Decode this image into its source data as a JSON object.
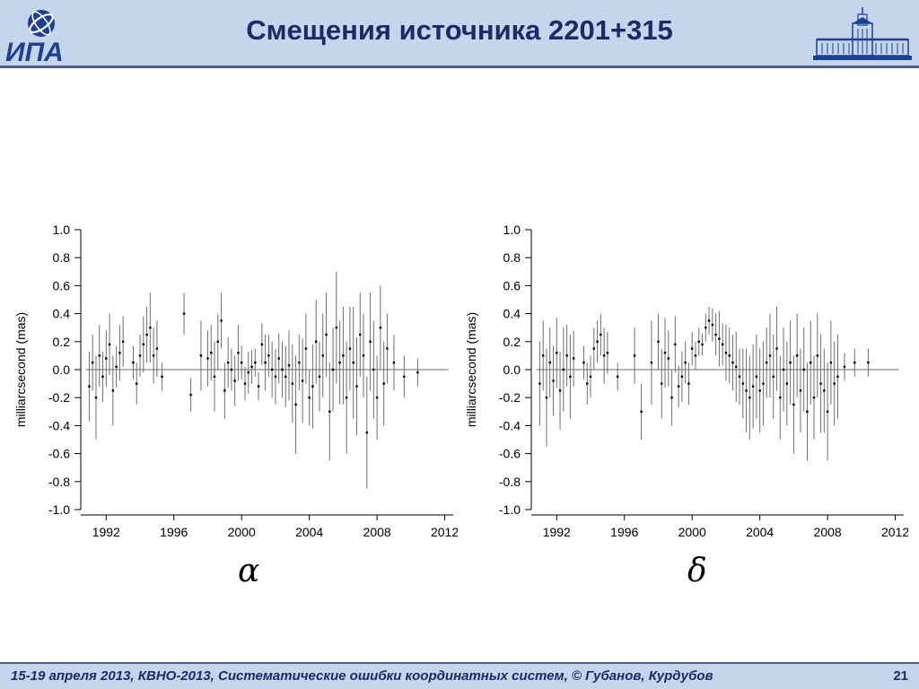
{
  "header": {
    "title": "Смещения источника 2201+315",
    "logo_left_text": "ИПА"
  },
  "footer": {
    "text": "15-19  апреля  2013,  КВНО-2013,  Систематические ошибки координатных систем, © Губанов, Курдубов",
    "page": "21"
  },
  "colors": {
    "header_bg": "#c5d5ec",
    "header_text": "#1c2a66",
    "accent": "#4a5f8e",
    "zero_line": "#b4b4b4",
    "series_line": "#6e6e6e",
    "series_point": "#000000"
  },
  "chart_data": [
    {
      "type": "scatter",
      "symbol": "α",
      "ylabel": "milliarcsecond (mas)",
      "xlabel": "",
      "xlim": [
        1990.5,
        2012.5
      ],
      "ylim": [
        -1.0,
        1.0
      ],
      "xticks": [
        1992,
        1996,
        2000,
        2004,
        2008,
        2012
      ],
      "xtick_labels": [
        "1992",
        "1996",
        "2000",
        "2004",
        "2008",
        "2012"
      ],
      "yticks": [
        1.0,
        0.8,
        0.6,
        0.4,
        0.2,
        0.0,
        -0.2,
        -0.4,
        -0.6,
        -0.8,
        -1.0
      ],
      "ytick_labels": [
        "1.0",
        "0.8",
        "0.6",
        "0.4",
        "0.2",
        "0.0",
        "-0.2",
        "-0.4",
        "-0.6",
        "-0.8",
        "-1.0"
      ],
      "grid": false,
      "series": [
        {
          "x": [
            1991.0,
            1991.2,
            1991.4,
            1991.6,
            1991.8,
            1992.0,
            1992.2,
            1992.4,
            1992.6,
            1992.8,
            1993.0,
            1993.6,
            1993.8,
            1994.0,
            1994.2,
            1994.4,
            1994.6,
            1994.8,
            1995.0,
            1995.3,
            1996.6,
            1997.0,
            1997.6,
            1998.0,
            1998.2,
            1998.4,
            1998.6,
            1998.8,
            1999.0,
            1999.2,
            1999.4,
            1999.6,
            1999.8,
            2000.0,
            2000.2,
            2000.4,
            2000.6,
            2000.8,
            2001.0,
            2001.2,
            2001.4,
            2001.6,
            2001.8,
            2002.0,
            2002.2,
            2002.4,
            2002.6,
            2002.8,
            2003.0,
            2003.2,
            2003.4,
            2003.6,
            2003.8,
            2004.0,
            2004.2,
            2004.4,
            2004.6,
            2004.8,
            2005.0,
            2005.2,
            2005.4,
            2005.6,
            2005.8,
            2006.0,
            2006.2,
            2006.4,
            2006.6,
            2006.8,
            2007.0,
            2007.2,
            2007.4,
            2007.6,
            2007.8,
            2008.0,
            2008.2,
            2008.4,
            2008.6,
            2009.0,
            2009.6,
            2010.4
          ],
          "y": [
            -0.12,
            0.05,
            -0.2,
            0.1,
            -0.05,
            0.08,
            0.18,
            -0.15,
            0.02,
            0.12,
            0.2,
            0.05,
            -0.1,
            0.1,
            0.18,
            0.25,
            0.3,
            0.1,
            0.15,
            -0.05,
            0.4,
            -0.18,
            0.1,
            0.08,
            0.12,
            -0.05,
            0.2,
            0.35,
            -0.15,
            0.05,
            0.0,
            -0.08,
            0.12,
            0.05,
            -0.1,
            -0.02,
            0.02,
            0.05,
            -0.12,
            0.18,
            0.05,
            0.1,
            0.0,
            -0.05,
            0.08,
            0.0,
            -0.05,
            0.03,
            -0.1,
            -0.25,
            0.05,
            -0.08,
            0.15,
            -0.2,
            -0.12,
            0.2,
            -0.05,
            0.1,
            0.25,
            -0.3,
            0.0,
            0.3,
            0.05,
            0.1,
            -0.2,
            0.15,
            0.05,
            -0.12,
            0.25,
            0.1,
            -0.45,
            0.2,
            0.0,
            -0.2,
            0.3,
            -0.1,
            0.15,
            0.05,
            -0.05,
            -0.02
          ],
          "err": [
            0.25,
            0.2,
            0.3,
            0.22,
            0.18,
            0.2,
            0.22,
            0.25,
            0.15,
            0.2,
            0.18,
            0.12,
            0.15,
            0.15,
            0.2,
            0.2,
            0.25,
            0.2,
            0.2,
            0.1,
            0.15,
            0.12,
            0.25,
            0.2,
            0.2,
            0.25,
            0.2,
            0.2,
            0.2,
            0.18,
            0.15,
            0.18,
            0.2,
            0.12,
            0.12,
            0.15,
            0.12,
            0.1,
            0.1,
            0.15,
            0.2,
            0.15,
            0.2,
            0.2,
            0.18,
            0.2,
            0.22,
            0.25,
            0.28,
            0.35,
            0.2,
            0.3,
            0.25,
            0.2,
            0.3,
            0.3,
            0.25,
            0.3,
            0.3,
            0.35,
            0.3,
            0.4,
            0.3,
            0.35,
            0.4,
            0.3,
            0.4,
            0.35,
            0.3,
            0.3,
            0.4,
            0.35,
            0.35,
            0.3,
            0.3,
            0.3,
            0.25,
            0.2,
            0.15,
            0.1
          ]
        }
      ]
    },
    {
      "type": "scatter",
      "symbol": "δ",
      "ylabel": "milliarcsecond (mas)",
      "xlabel": "",
      "xlim": [
        1990.5,
        2012.5
      ],
      "ylim": [
        -1.0,
        1.0
      ],
      "xticks": [
        1992,
        1996,
        2000,
        2004,
        2008,
        2012
      ],
      "xtick_labels": [
        "1992",
        "1996",
        "2000",
        "2004",
        "2008",
        "2012"
      ],
      "yticks": [
        1.0,
        0.8,
        0.6,
        0.4,
        0.2,
        0.0,
        -0.2,
        -0.4,
        -0.6,
        -0.8,
        -1.0
      ],
      "ytick_labels": [
        "1.0",
        "0.8",
        "0.6",
        "0.4",
        "0.2",
        "0.0",
        "-0.2",
        "-0.4",
        "-0.6",
        "-0.8",
        "-1.0"
      ],
      "grid": false,
      "series": [
        {
          "x": [
            1991.0,
            1991.2,
            1991.4,
            1991.6,
            1991.8,
            1992.0,
            1992.2,
            1992.4,
            1992.6,
            1992.8,
            1993.0,
            1993.6,
            1993.8,
            1994.0,
            1994.2,
            1994.4,
            1994.6,
            1994.8,
            1995.0,
            1995.6,
            1996.6,
            1997.0,
            1997.6,
            1998.0,
            1998.2,
            1998.4,
            1998.6,
            1998.8,
            1999.0,
            1999.2,
            1999.4,
            1999.6,
            1999.8,
            2000.0,
            2000.2,
            2000.4,
            2000.6,
            2000.8,
            2001.0,
            2001.2,
            2001.4,
            2001.6,
            2001.8,
            2002.0,
            2002.2,
            2002.4,
            2002.6,
            2002.8,
            2003.0,
            2003.2,
            2003.4,
            2003.6,
            2003.8,
            2004.0,
            2004.2,
            2004.4,
            2004.6,
            2004.8,
            2005.0,
            2005.2,
            2005.4,
            2005.6,
            2005.8,
            2006.0,
            2006.2,
            2006.4,
            2006.6,
            2006.8,
            2007.0,
            2007.2,
            2007.4,
            2007.6,
            2007.8,
            2008.0,
            2008.2,
            2008.4,
            2008.6,
            2009.0,
            2009.6,
            2010.4
          ],
          "y": [
            -0.1,
            0.1,
            -0.2,
            0.05,
            -0.08,
            0.12,
            -0.15,
            0.0,
            0.1,
            -0.05,
            0.08,
            0.05,
            -0.1,
            -0.05,
            0.15,
            0.2,
            0.25,
            0.1,
            0.12,
            -0.05,
            0.1,
            -0.3,
            0.05,
            0.2,
            -0.1,
            0.12,
            0.08,
            -0.2,
            0.18,
            -0.12,
            -0.05,
            0.05,
            -0.1,
            0.15,
            0.1,
            0.2,
            0.18,
            0.3,
            0.35,
            0.32,
            0.25,
            0.22,
            0.18,
            0.12,
            0.1,
            0.05,
            0.02,
            -0.05,
            -0.1,
            -0.15,
            -0.2,
            -0.12,
            -0.05,
            -0.15,
            -0.1,
            0.05,
            0.1,
            -0.05,
            0.15,
            -0.2,
            0.0,
            -0.1,
            0.05,
            -0.25,
            0.1,
            -0.15,
            0.0,
            -0.3,
            0.05,
            -0.2,
            0.1,
            -0.1,
            -0.15,
            -0.3,
            0.05,
            -0.1,
            -0.05,
            0.02,
            0.05,
            0.05
          ],
          "err": [
            0.3,
            0.25,
            0.35,
            0.25,
            0.25,
            0.25,
            0.28,
            0.3,
            0.22,
            0.3,
            0.2,
            0.12,
            0.15,
            0.15,
            0.15,
            0.15,
            0.15,
            0.2,
            0.15,
            0.1,
            0.2,
            0.2,
            0.3,
            0.2,
            0.25,
            0.25,
            0.2,
            0.2,
            0.2,
            0.15,
            0.18,
            0.15,
            0.15,
            0.12,
            0.1,
            0.1,
            0.08,
            0.1,
            0.1,
            0.12,
            0.15,
            0.2,
            0.15,
            0.2,
            0.2,
            0.2,
            0.25,
            0.2,
            0.25,
            0.3,
            0.3,
            0.3,
            0.3,
            0.3,
            0.3,
            0.25,
            0.3,
            0.3,
            0.3,
            0.3,
            0.3,
            0.3,
            0.3,
            0.35,
            0.3,
            0.3,
            0.3,
            0.35,
            0.3,
            0.3,
            0.3,
            0.35,
            0.3,
            0.35,
            0.3,
            0.3,
            0.3,
            0.1,
            0.1,
            0.1
          ]
        }
      ]
    }
  ]
}
